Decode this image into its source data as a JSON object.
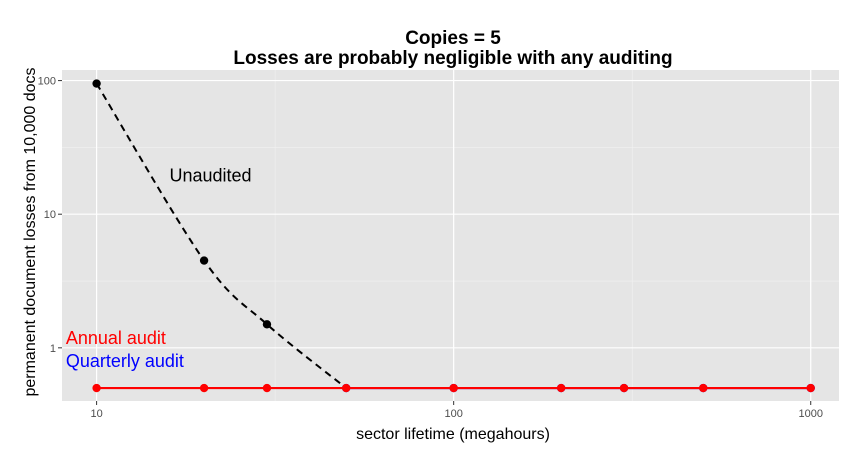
{
  "chart_data": {
    "type": "line",
    "title": "Copies = 5",
    "subtitle": "Losses are probably negligible with any auditing",
    "xlabel": "sector lifetime (megahours)",
    "ylabel": "permanent document losses from 10,000 docs",
    "x_scale": "log",
    "y_scale": "log",
    "xlim": [
      8,
      1200
    ],
    "ylim": [
      0.4,
      120
    ],
    "x_ticks": [
      10,
      100,
      1000
    ],
    "x_tick_labels": [
      "10",
      "100",
      "1000"
    ],
    "y_ticks": [
      1,
      10,
      100
    ],
    "y_tick_labels": [
      "1",
      "10",
      "100"
    ],
    "grid": true,
    "background": "#e5e5e5",
    "series": [
      {
        "style": "dashed",
        "color": "#000000",
        "x": [
          10,
          20,
          30,
          50
        ],
        "y": [
          95,
          4.5,
          1.5,
          0.5
        ],
        "points_shown": [
          true,
          true,
          true,
          false
        ]
      },
      {
        "style": "solid",
        "color": "#0000ff",
        "x": [
          50,
          100,
          200,
          300,
          500,
          1000
        ],
        "y": [
          0.5,
          0.5,
          0.5,
          0.5,
          0.5,
          0.5
        ]
      },
      {
        "style": "solid",
        "color": "#ff0000",
        "x": [
          10,
          20,
          30,
          50,
          100,
          200,
          300,
          500,
          1000
        ],
        "y": [
          0.5,
          0.5,
          0.5,
          0.5,
          0.5,
          0.5,
          0.5,
          0.5,
          0.5
        ]
      }
    ],
    "annotations": [
      {
        "text": "Unaudited",
        "x": 16,
        "y": 17.5,
        "color": "#000000"
      },
      {
        "text": "Annual audit",
        "x": 8.2,
        "y": 1.07,
        "color": "#ff0000"
      },
      {
        "text": "Quarterly audit",
        "x": 8.2,
        "y": 0.72,
        "color": "#0000ff"
      }
    ]
  }
}
